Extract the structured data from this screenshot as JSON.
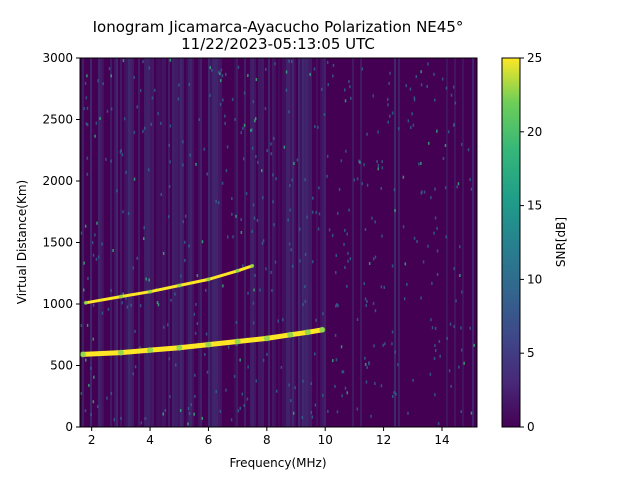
{
  "chart_data": {
    "type": "heatmap",
    "title_line1": "Ionogram Jicamarca-Ayacucho Polarization NE45°",
    "title_line2": "11/22/2023-05:13:05 UTC",
    "xlabel": "Frequency(MHz)",
    "ylabel": "Virtual Distance(Km)",
    "xlim": [
      1.6,
      15.2
    ],
    "ylim": [
      0,
      3000
    ],
    "xticks": [
      2,
      4,
      6,
      8,
      10,
      12,
      14
    ],
    "yticks": [
      0,
      500,
      1000,
      1500,
      2000,
      2500,
      3000
    ],
    "colorbar": {
      "label": "SNR[dB]",
      "range": [
        0,
        25
      ],
      "ticks": [
        0,
        5,
        10,
        15,
        20,
        25
      ],
      "colormap": "viridis"
    },
    "traces": [
      {
        "description_shown": "strong echo trace (O/X mode)",
        "points": [
          [
            1.7,
            590
          ],
          [
            3,
            605
          ],
          [
            4,
            625
          ],
          [
            5,
            645
          ],
          [
            6,
            670
          ],
          [
            7,
            695
          ],
          [
            8,
            720
          ],
          [
            8.8,
            750
          ],
          [
            9.4,
            770
          ],
          [
            9.9,
            790
          ]
        ]
      },
      {
        "description_shown": "second-hop echo trace",
        "points": [
          [
            1.8,
            1010
          ],
          [
            3,
            1060
          ],
          [
            4,
            1100
          ],
          [
            5,
            1150
          ],
          [
            6,
            1200
          ],
          [
            7,
            1270
          ],
          [
            7.5,
            1310
          ]
        ]
      }
    ],
    "background_colors": {
      "dark": "#440154",
      "mid": "#3b528b",
      "bright": "#fde725"
    }
  }
}
